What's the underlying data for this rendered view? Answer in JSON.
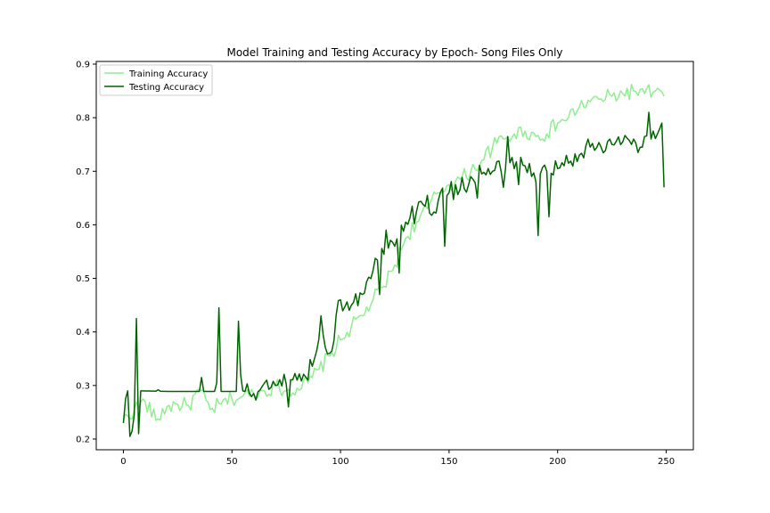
{
  "chart_data": {
    "type": "line",
    "title": "Model Training and Testing Accuracy by Epoch- Song Files Only",
    "xlabel": "",
    "ylabel": "",
    "xlim": [
      -12.5,
      262.5
    ],
    "ylim": [
      0.18,
      0.905
    ],
    "x_ticks": [
      0,
      50,
      100,
      150,
      200,
      250
    ],
    "y_ticks": [
      0.2,
      0.3,
      0.4,
      0.5,
      0.6,
      0.7,
      0.8,
      0.9
    ],
    "x_tick_labels": [
      "0",
      "50",
      "100",
      "150",
      "200",
      "250"
    ],
    "y_tick_labels": [
      "0.2",
      "0.3",
      "0.4",
      "0.5",
      "0.6",
      "0.7",
      "0.8",
      "0.9"
    ],
    "grid": false,
    "legend_position": "top-left",
    "x_epoch_step": 1,
    "series": [
      {
        "name": "Training Accuracy",
        "color": "#90ee90",
        "keypoints": [
          [
            0,
            0.235
          ],
          [
            5,
            0.255
          ],
          [
            10,
            0.27
          ],
          [
            15,
            0.235
          ],
          [
            20,
            0.26
          ],
          [
            25,
            0.265
          ],
          [
            30,
            0.262
          ],
          [
            35,
            0.29
          ],
          [
            40,
            0.255
          ],
          [
            45,
            0.265
          ],
          [
            50,
            0.275
          ],
          [
            55,
            0.28
          ],
          [
            60,
            0.285
          ],
          [
            65,
            0.29
          ],
          [
            70,
            0.3
          ],
          [
            75,
            0.29
          ],
          [
            80,
            0.295
          ],
          [
            85,
            0.305
          ],
          [
            90,
            0.33
          ],
          [
            95,
            0.355
          ],
          [
            100,
            0.385
          ],
          [
            105,
            0.41
          ],
          [
            110,
            0.43
          ],
          [
            115,
            0.46
          ],
          [
            120,
            0.485
          ],
          [
            125,
            0.525
          ],
          [
            130,
            0.575
          ],
          [
            135,
            0.605
          ],
          [
            140,
            0.63
          ],
          [
            145,
            0.66
          ],
          [
            150,
            0.675
          ],
          [
            155,
            0.685
          ],
          [
            160,
            0.7
          ],
          [
            165,
            0.72
          ],
          [
            170,
            0.745
          ],
          [
            175,
            0.76
          ],
          [
            180,
            0.77
          ],
          [
            185,
            0.775
          ],
          [
            190,
            0.765
          ],
          [
            195,
            0.77
          ],
          [
            200,
            0.79
          ],
          [
            205,
            0.8
          ],
          [
            210,
            0.82
          ],
          [
            215,
            0.83
          ],
          [
            220,
            0.835
          ],
          [
            225,
            0.84
          ],
          [
            230,
            0.845
          ],
          [
            235,
            0.85
          ],
          [
            240,
            0.845
          ],
          [
            245,
            0.85
          ],
          [
            249,
            0.84
          ]
        ],
        "noise_amplitude": 0.015
      },
      {
        "name": "Testing Accuracy",
        "color": "#006400",
        "keypoints": [
          [
            0,
            0.23
          ],
          [
            1,
            0.275
          ],
          [
            2,
            0.29
          ],
          [
            3,
            0.205
          ],
          [
            4,
            0.215
          ],
          [
            5,
            0.245
          ],
          [
            6,
            0.425
          ],
          [
            7,
            0.21
          ],
          [
            8,
            0.29
          ],
          [
            20,
            0.289
          ],
          [
            35,
            0.289
          ],
          [
            36,
            0.315
          ],
          [
            37,
            0.289
          ],
          [
            42,
            0.289
          ],
          [
            43,
            0.305
          ],
          [
            44,
            0.445
          ],
          [
            45,
            0.289
          ],
          [
            52,
            0.289
          ],
          [
            53,
            0.42
          ],
          [
            54,
            0.32
          ],
          [
            55,
            0.29
          ],
          [
            60,
            0.285
          ],
          [
            70,
            0.3
          ],
          [
            80,
            0.31
          ],
          [
            88,
            0.35
          ],
          [
            92,
            0.395
          ],
          [
            95,
            0.36
          ],
          [
            100,
            0.46
          ],
          [
            105,
            0.45
          ],
          [
            110,
            0.47
          ],
          [
            115,
            0.515
          ],
          [
            120,
            0.545
          ],
          [
            125,
            0.56
          ],
          [
            130,
            0.605
          ],
          [
            135,
            0.625
          ],
          [
            140,
            0.625
          ],
          [
            145,
            0.645
          ],
          [
            150,
            0.66
          ],
          [
            155,
            0.665
          ],
          [
            160,
            0.69
          ],
          [
            165,
            0.695
          ],
          [
            170,
            0.7
          ],
          [
            175,
            0.71
          ],
          [
            180,
            0.705
          ],
          [
            185,
            0.71
          ],
          [
            190,
            0.68
          ],
          [
            195,
            0.7
          ],
          [
            200,
            0.705
          ],
          [
            205,
            0.715
          ],
          [
            210,
            0.73
          ],
          [
            215,
            0.745
          ],
          [
            220,
            0.745
          ],
          [
            225,
            0.75
          ],
          [
            230,
            0.755
          ],
          [
            235,
            0.76
          ],
          [
            240,
            0.765
          ],
          [
            244,
            0.775
          ],
          [
            246,
            0.77
          ],
          [
            248,
            0.79
          ],
          [
            249,
            0.67
          ]
        ],
        "noise_amplitude": 0.02,
        "spikes": [
          [
            16,
            0.292
          ],
          [
            21,
            0.289
          ],
          [
            48,
            0.289
          ],
          [
            76,
            0.26
          ],
          [
            85,
            0.31
          ],
          [
            91,
            0.43
          ],
          [
            118,
            0.47
          ],
          [
            121,
            0.59
          ],
          [
            127,
            0.51
          ],
          [
            140,
            0.655
          ],
          [
            148,
            0.56
          ],
          [
            153,
            0.675
          ],
          [
            161,
            0.685
          ],
          [
            163,
            0.65
          ],
          [
            175,
            0.67
          ],
          [
            177,
            0.765
          ],
          [
            182,
            0.675
          ],
          [
            191,
            0.58
          ],
          [
            196,
            0.615
          ],
          [
            214,
            0.76
          ],
          [
            237,
            0.735
          ],
          [
            239,
            0.745
          ],
          [
            242,
            0.81
          ]
        ]
      }
    ]
  }
}
